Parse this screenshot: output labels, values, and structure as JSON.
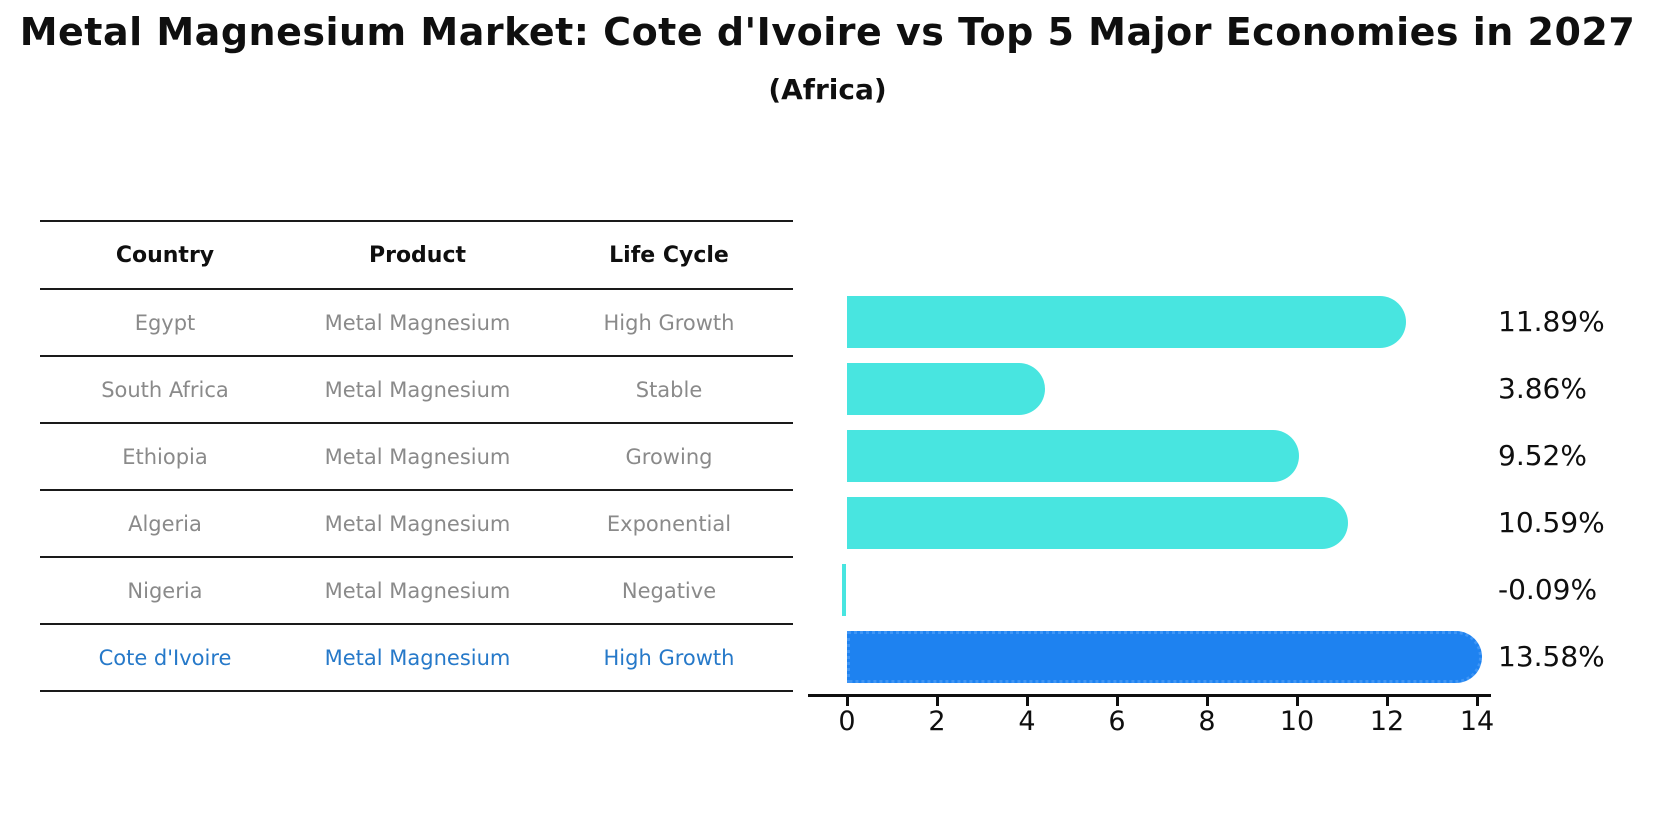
{
  "title": "Metal Magnesium Market: Cote d'Ivoire vs Top 5 Major Economies in 2027",
  "subtitle": "(Africa)",
  "table": {
    "headers": [
      "Country",
      "Product",
      "Life Cycle"
    ],
    "rows": [
      {
        "country": "Egypt",
        "product": "Metal Magnesium",
        "life_cycle": "High Growth",
        "highlight": false
      },
      {
        "country": "South Africa",
        "product": "Metal Magnesium",
        "life_cycle": "Stable",
        "highlight": false
      },
      {
        "country": "Ethiopia",
        "product": "Metal Magnesium",
        "life_cycle": "Growing",
        "highlight": false
      },
      {
        "country": "Algeria",
        "product": "Metal Magnesium",
        "life_cycle": "Exponential",
        "highlight": false
      },
      {
        "country": "Nigeria",
        "product": "Metal Magnesium",
        "life_cycle": "Negative",
        "highlight": false
      },
      {
        "country": "Cote d'Ivoire",
        "product": "Metal Magnesium",
        "life_cycle": "High Growth",
        "highlight": true
      }
    ]
  },
  "chart_data": {
    "type": "bar",
    "orientation": "horizontal",
    "title": "Metal Magnesium Market: Cote d'Ivoire vs Top 5 Major Economies in 2027 (Africa)",
    "categories": [
      "Egypt",
      "South Africa",
      "Ethiopia",
      "Algeria",
      "Nigeria",
      "Cote d'Ivoire"
    ],
    "values": [
      11.89,
      3.86,
      9.52,
      10.59,
      -0.09,
      13.58
    ],
    "value_labels": [
      "11.89%",
      "3.86%",
      "9.52%",
      "10.59%",
      "-0.09%",
      "13.58%"
    ],
    "highlight_index": 5,
    "bar_color": "#48e5e0",
    "highlight_color": "#1e82f0",
    "xticks": [
      0,
      2,
      4,
      6,
      8,
      10,
      12,
      14
    ],
    "xlim": [
      0,
      14
    ],
    "grid": false,
    "legend": null,
    "xlabel": "",
    "ylabel": ""
  },
  "colors": {
    "highlight_text": "#2679c9",
    "body_text": "#8a8a8a",
    "header_text": "#0f0f0f",
    "bar_cyan": "#48e5e0",
    "bar_blue": "#1e82f0"
  }
}
